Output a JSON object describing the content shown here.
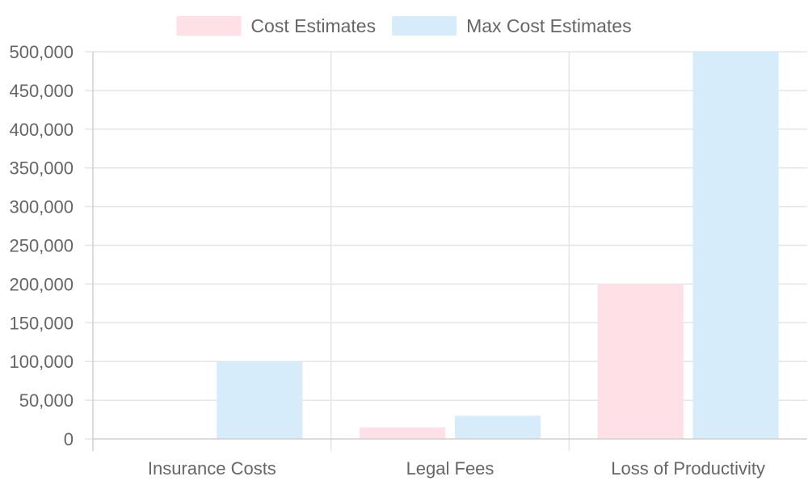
{
  "chart_data": {
    "type": "bar",
    "categories": [
      "Insurance Costs",
      "Legal Fees",
      "Loss of Productivity"
    ],
    "series": [
      {
        "name": "Cost Estimates",
        "values": [
          0,
          15000,
          200000
        ],
        "color": "#ffe0e6"
      },
      {
        "name": "Max Cost Estimates",
        "values": [
          100000,
          30000,
          500000
        ],
        "color": "#d7ecfb"
      }
    ],
    "ylim": [
      0,
      500000
    ],
    "yticks": [
      "0",
      "50,000",
      "100,000",
      "150,000",
      "200,000",
      "250,000",
      "300,000",
      "350,000",
      "400,000",
      "450,000",
      "500,000"
    ],
    "grid": true,
    "legend": "top"
  }
}
